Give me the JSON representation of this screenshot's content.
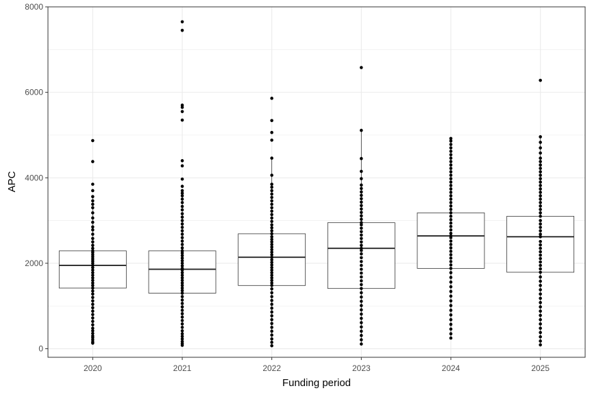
{
  "chart_data": {
    "type": "boxplot",
    "xlabel": "Funding period",
    "ylabel": "APC",
    "ylim": [
      -200,
      8000
    ],
    "yticks": [
      0,
      2000,
      4000,
      6000,
      8000
    ],
    "grid": true,
    "categories": [
      "2020",
      "2021",
      "2022",
      "2023",
      "2024",
      "2025"
    ],
    "boxes": [
      {
        "category": "2020",
        "q1": 1420,
        "median": 1950,
        "q3": 2290,
        "whisker_low": 130,
        "whisker_high": 3560,
        "points": [
          130,
          160,
          210,
          260,
          300,
          360,
          420,
          480,
          560,
          640,
          720,
          800,
          880,
          960,
          1040,
          1120,
          1200,
          1280,
          1350,
          1420,
          1480,
          1540,
          1600,
          1660,
          1720,
          1780,
          1840,
          1900,
          1950,
          2000,
          2050,
          2100,
          2150,
          2200,
          2250,
          2290,
          2350,
          2420,
          2500,
          2580,
          2680,
          2780,
          2850,
          2960,
          3060,
          3180,
          3300,
          3380,
          3460,
          3560,
          3700,
          3850,
          4380,
          4870
        ]
      },
      {
        "category": "2021",
        "q1": 1300,
        "median": 1860,
        "q3": 2290,
        "whisker_low": 80,
        "whisker_high": 3640,
        "points": [
          80,
          120,
          170,
          230,
          290,
          350,
          420,
          500,
          580,
          660,
          740,
          820,
          900,
          980,
          1060,
          1140,
          1220,
          1300,
          1360,
          1420,
          1480,
          1540,
          1600,
          1660,
          1720,
          1780,
          1840,
          1880,
          1940,
          2000,
          2060,
          2120,
          2180,
          2240,
          2290,
          2360,
          2440,
          2520,
          2600,
          2680,
          2760,
          2840,
          2920,
          3000,
          3080,
          3160,
          3250,
          3330,
          3420,
          3500,
          3580,
          3640,
          3700,
          3800,
          3970,
          4280,
          4400,
          5350,
          5550,
          5650,
          5700,
          7450,
          7650
        ]
      },
      {
        "category": "2022",
        "q1": 1480,
        "median": 2140,
        "q3": 2690,
        "whisker_low": 70,
        "whisker_high": 4460,
        "points": [
          70,
          150,
          230,
          320,
          410,
          500,
          590,
          680,
          770,
          860,
          950,
          1040,
          1130,
          1220,
          1310,
          1400,
          1480,
          1540,
          1600,
          1660,
          1720,
          1780,
          1840,
          1900,
          1960,
          2020,
          2080,
          2140,
          2200,
          2260,
          2320,
          2380,
          2440,
          2500,
          2560,
          2620,
          2690,
          2760,
          2830,
          2900,
          2980,
          3060,
          3140,
          3220,
          3300,
          3380,
          3460,
          3540,
          3620,
          3700,
          3780,
          3850,
          4060,
          4460,
          4880,
          5060,
          5340,
          5860
        ]
      },
      {
        "category": "2023",
        "q1": 1410,
        "median": 2350,
        "q3": 2950,
        "whisker_low": 110,
        "whisker_high": 5110,
        "points": [
          110,
          210,
          310,
          410,
          510,
          610,
          710,
          810,
          910,
          1010,
          1110,
          1210,
          1310,
          1410,
          1500,
          1590,
          1680,
          1770,
          1860,
          1950,
          2040,
          2130,
          2220,
          2300,
          2350,
          2420,
          2500,
          2580,
          2660,
          2740,
          2820,
          2900,
          2950,
          3030,
          3110,
          3190,
          3270,
          3350,
          3430,
          3510,
          3590,
          3670,
          3750,
          3830,
          3980,
          4150,
          4450,
          5110,
          6580
        ]
      },
      {
        "category": "2024",
        "q1": 1880,
        "median": 2640,
        "q3": 3180,
        "whisker_low": 250,
        "whisker_high": 4920,
        "points": [
          250,
          350,
          460,
          570,
          680,
          790,
          900,
          1010,
          1120,
          1230,
          1340,
          1450,
          1560,
          1670,
          1780,
          1880,
          1960,
          2040,
          2120,
          2200,
          2280,
          2360,
          2440,
          2520,
          2600,
          2640,
          2700,
          2780,
          2860,
          2940,
          3020,
          3100,
          3180,
          3260,
          3340,
          3420,
          3500,
          3580,
          3660,
          3740,
          3820,
          3900,
          3980,
          4060,
          4140,
          4220,
          4300,
          4380,
          4460,
          4540,
          4620,
          4700,
          4780,
          4860,
          4920
        ]
      },
      {
        "category": "2025",
        "q1": 1790,
        "median": 2620,
        "q3": 3100,
        "whisker_low": 90,
        "whisker_high": 4960,
        "points": [
          90,
          180,
          280,
          380,
          480,
          580,
          680,
          780,
          880,
          980,
          1080,
          1180,
          1280,
          1380,
          1480,
          1580,
          1680,
          1790,
          1870,
          1950,
          2030,
          2110,
          2190,
          2270,
          2350,
          2430,
          2510,
          2620,
          2680,
          2760,
          2840,
          2920,
          3000,
          3100,
          3180,
          3260,
          3340,
          3420,
          3500,
          3580,
          3660,
          3740,
          3820,
          3900,
          3980,
          4060,
          4140,
          4220,
          4300,
          4380,
          4460,
          4580,
          4700,
          4830,
          4960,
          6280
        ]
      }
    ]
  }
}
